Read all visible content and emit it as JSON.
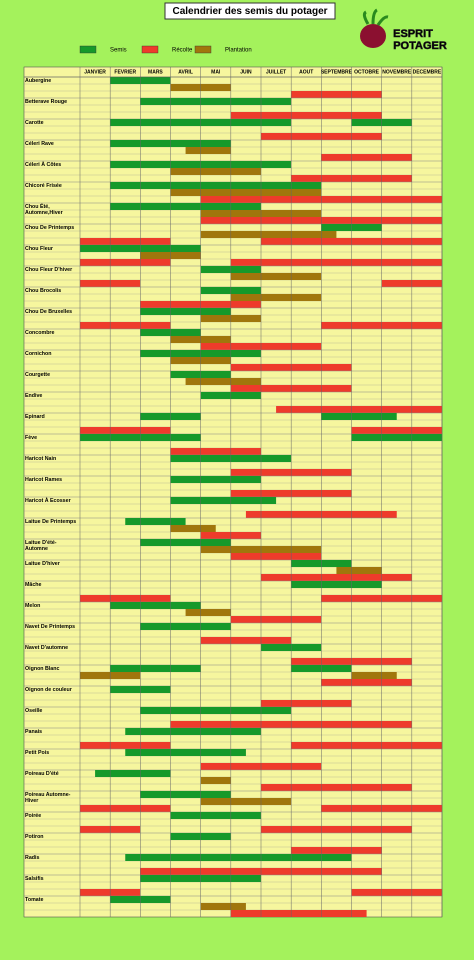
{
  "brand": [
    "ESPRIT",
    "POTAGER"
  ],
  "chart_data": {
    "type": "gantt",
    "title": "Calendrier des semis du potager",
    "categories": [
      "JANVIER",
      "FEVRIER",
      "MARS",
      "AVRIL",
      "MAI",
      "JUIN",
      "JUILLET",
      "AOUT",
      "SEPTEMBRE",
      "OCTOBRE",
      "NOVEMBRE",
      "DECEMBRE"
    ],
    "xlim": [
      0,
      12
    ],
    "series": [
      {
        "name": "Semis",
        "color": "#16992a"
      },
      {
        "name": "Récolte",
        "color": "#ee3b2b"
      },
      {
        "name": "Plantation",
        "color": "#a0760c"
      }
    ],
    "rows": [
      {
        "name": [
          "Aubergine"
        ],
        "spans": [
          [
            [
              1,
              3
            ]
          ],
          [
            [
              7,
              10
            ]
          ],
          [
            [
              3,
              5
            ]
          ]
        ]
      },
      {
        "name": [
          "Betterave Rouge"
        ],
        "spans": [
          [
            [
              2,
              7
            ]
          ],
          [
            [
              5,
              10
            ]
          ],
          []
        ]
      },
      {
        "name": [
          "Carotte"
        ],
        "spans": [
          [
            [
              1,
              7
            ],
            [
              9,
              11
            ]
          ],
          [
            [
              6,
              10
            ]
          ],
          []
        ]
      },
      {
        "name": [
          "Céleri Rave"
        ],
        "spans": [
          [
            [
              1,
              5
            ]
          ],
          [
            [
              8,
              11
            ]
          ],
          [
            [
              3.5,
              5
            ]
          ]
        ]
      },
      {
        "name": [
          "Céleri À Côtes"
        ],
        "spans": [
          [
            [
              1,
              7
            ]
          ],
          [
            [
              7,
              11
            ]
          ],
          [
            [
              3,
              6
            ]
          ]
        ]
      },
      {
        "name": [
          "Chicoré Frisée"
        ],
        "spans": [
          [
            [
              1,
              8
            ]
          ],
          [
            [
              4,
              12
            ]
          ],
          [
            [
              3,
              8
            ]
          ]
        ]
      },
      {
        "name": [
          "Chou Été,",
          "Automne,Hiver"
        ],
        "spans": [
          [
            [
              1,
              6
            ]
          ],
          [
            [
              4,
              12
            ]
          ],
          [
            [
              4,
              8
            ]
          ]
        ]
      },
      {
        "name": [
          "Chou De Printemps"
        ],
        "spans": [
          [
            [
              8,
              10
            ]
          ],
          [
            [
              0,
              3
            ],
            [
              6,
              12
            ]
          ],
          [
            [
              4,
              8.5
            ]
          ]
        ]
      },
      {
        "name": [
          "Chou Fleur"
        ],
        "spans": [
          [
            [
              0,
              4
            ]
          ],
          [
            [
              0,
              3
            ],
            [
              5,
              12
            ]
          ],
          [
            [
              2,
              4
            ]
          ]
        ]
      },
      {
        "name": [
          "Chou Fleur D'hiver"
        ],
        "spans": [
          [
            [
              4,
              6
            ]
          ],
          [
            [
              0,
              2
            ],
            [
              10,
              12
            ]
          ],
          [
            [
              5,
              8
            ]
          ]
        ]
      },
      {
        "name": [
          "Chou Brocolis"
        ],
        "spans": [
          [
            [
              4,
              6
            ]
          ],
          [
            [
              2,
              6
            ]
          ],
          [
            [
              5,
              8
            ]
          ]
        ]
      },
      {
        "name": [
          "Chou De Bruxelles"
        ],
        "spans": [
          [
            [
              2,
              5
            ]
          ],
          [
            [
              0,
              3
            ],
            [
              8,
              12
            ]
          ],
          [
            [
              4,
              6
            ]
          ]
        ]
      },
      {
        "name": [
          "Concombre"
        ],
        "spans": [
          [
            [
              2,
              4
            ]
          ],
          [
            [
              4,
              8
            ]
          ],
          [
            [
              3,
              5
            ]
          ]
        ]
      },
      {
        "name": [
          "Cornichon"
        ],
        "spans": [
          [
            [
              2,
              6
            ]
          ],
          [
            [
              5,
              9
            ]
          ],
          [
            [
              3,
              5
            ]
          ]
        ]
      },
      {
        "name": [
          "Courgette"
        ],
        "spans": [
          [
            [
              3,
              5
            ]
          ],
          [
            [
              5,
              9
            ]
          ],
          [
            [
              3.5,
              6
            ]
          ]
        ]
      },
      {
        "name": [
          "Endive"
        ],
        "spans": [
          [
            [
              4,
              6
            ]
          ],
          [
            [
              6.5,
              12
            ]
          ],
          []
        ]
      },
      {
        "name": [
          "Epinard"
        ],
        "spans": [
          [
            [
              2,
              4
            ],
            [
              8,
              10.5
            ]
          ],
          [
            [
              0,
              3
            ],
            [
              9,
              12
            ]
          ],
          []
        ]
      },
      {
        "name": [
          "Fève"
        ],
        "spans": [
          [
            [
              0,
              4
            ],
            [
              9,
              12
            ]
          ],
          [
            [
              3,
              6
            ]
          ],
          []
        ]
      },
      {
        "name": [
          "Haricot Nain"
        ],
        "spans": [
          [
            [
              3,
              7
            ]
          ],
          [
            [
              5,
              9
            ]
          ],
          []
        ]
      },
      {
        "name": [
          "Haricot Rames"
        ],
        "spans": [
          [
            [
              3,
              6
            ]
          ],
          [
            [
              5,
              9
            ]
          ],
          []
        ]
      },
      {
        "name": [
          "Haricot À Ecosser"
        ],
        "spans": [
          [
            [
              3,
              6.5
            ]
          ],
          [
            [
              5.5,
              10.5
            ]
          ],
          []
        ]
      },
      {
        "name": [
          "Laitue De Printemps"
        ],
        "spans": [
          [
            [
              1.5,
              3.5
            ]
          ],
          [
            [
              4,
              6
            ]
          ],
          [
            [
              3,
              4.5
            ]
          ]
        ]
      },
      {
        "name": [
          "Laitue D'été-",
          "Automne"
        ],
        "spans": [
          [
            [
              2,
              5
            ]
          ],
          [
            [
              5,
              8
            ]
          ],
          [
            [
              4,
              8
            ]
          ]
        ]
      },
      {
        "name": [
          "Laitue D'hiver"
        ],
        "spans": [
          [
            [
              7,
              9
            ]
          ],
          [
            [
              6,
              11
            ]
          ],
          [
            [
              8.5,
              10
            ]
          ]
        ]
      },
      {
        "name": [
          "Mâche"
        ],
        "spans": [
          [
            [
              7,
              10
            ]
          ],
          [
            [
              0,
              3
            ],
            [
              8,
              12
            ]
          ],
          []
        ]
      },
      {
        "name": [
          "Melon"
        ],
        "spans": [
          [
            [
              1,
              4
            ]
          ],
          [
            [
              5,
              8
            ]
          ],
          [
            [
              3.5,
              5
            ]
          ]
        ]
      },
      {
        "name": [
          "Navet De Printemps"
        ],
        "spans": [
          [
            [
              2,
              5
            ]
          ],
          [
            [
              4,
              7
            ]
          ],
          []
        ]
      },
      {
        "name": [
          "Navet D'automne"
        ],
        "spans": [
          [
            [
              6,
              8
            ]
          ],
          [
            [
              7,
              11
            ]
          ],
          []
        ]
      },
      {
        "name": [
          "Oignon Blanc"
        ],
        "spans": [
          [
            [
              1,
              4
            ],
            [
              7,
              9
            ]
          ],
          [
            [
              8,
              11
            ]
          ],
          [
            [
              0,
              2
            ],
            [
              9,
              10.5
            ]
          ]
        ]
      },
      {
        "name": [
          "Oignon de couleur"
        ],
        "spans": [
          [
            [
              1,
              3
            ]
          ],
          [
            [
              6,
              9
            ]
          ],
          []
        ]
      },
      {
        "name": [
          "Oseille"
        ],
        "spans": [
          [
            [
              2,
              7
            ]
          ],
          [
            [
              3,
              11
            ]
          ],
          []
        ]
      },
      {
        "name": [
          "Panais"
        ],
        "spans": [
          [
            [
              1.5,
              6
            ]
          ],
          [
            [
              0,
              3
            ],
            [
              7,
              12
            ]
          ],
          []
        ]
      },
      {
        "name": [
          "Petit Pois"
        ],
        "spans": [
          [
            [
              1.5,
              5.5
            ]
          ],
          [
            [
              4,
              8
            ]
          ],
          []
        ]
      },
      {
        "name": [
          "Poireau D'été"
        ],
        "spans": [
          [
            [
              0.5,
              3
            ]
          ],
          [
            [
              6,
              11
            ]
          ],
          [
            [
              4,
              5
            ]
          ]
        ]
      },
      {
        "name": [
          "Poireau Automne-",
          "Hiver"
        ],
        "spans": [
          [
            [
              2,
              5
            ]
          ],
          [
            [
              0,
              3
            ],
            [
              8,
              12
            ]
          ],
          [
            [
              4,
              7
            ]
          ]
        ]
      },
      {
        "name": [
          "Poirée"
        ],
        "spans": [
          [
            [
              3,
              6
            ]
          ],
          [
            [
              0,
              2
            ],
            [
              6,
              11
            ]
          ],
          []
        ]
      },
      {
        "name": [
          "Potiron"
        ],
        "spans": [
          [
            [
              3,
              5
            ]
          ],
          [
            [
              7,
              10
            ]
          ],
          []
        ]
      },
      {
        "name": [
          "Radis"
        ],
        "spans": [
          [
            [
              1.5,
              9
            ]
          ],
          [
            [
              2,
              10
            ]
          ],
          []
        ]
      },
      {
        "name": [
          "Salsifis"
        ],
        "spans": [
          [
            [
              2,
              6
            ]
          ],
          [
            [
              0,
              2
            ],
            [
              9,
              12
            ]
          ],
          []
        ]
      },
      {
        "name": [
          "Tomate"
        ],
        "spans": [
          [
            [
              1,
              3
            ]
          ],
          [
            [
              5,
              9.5
            ]
          ],
          [
            [
              4,
              5.5
            ]
          ]
        ]
      }
    ]
  }
}
